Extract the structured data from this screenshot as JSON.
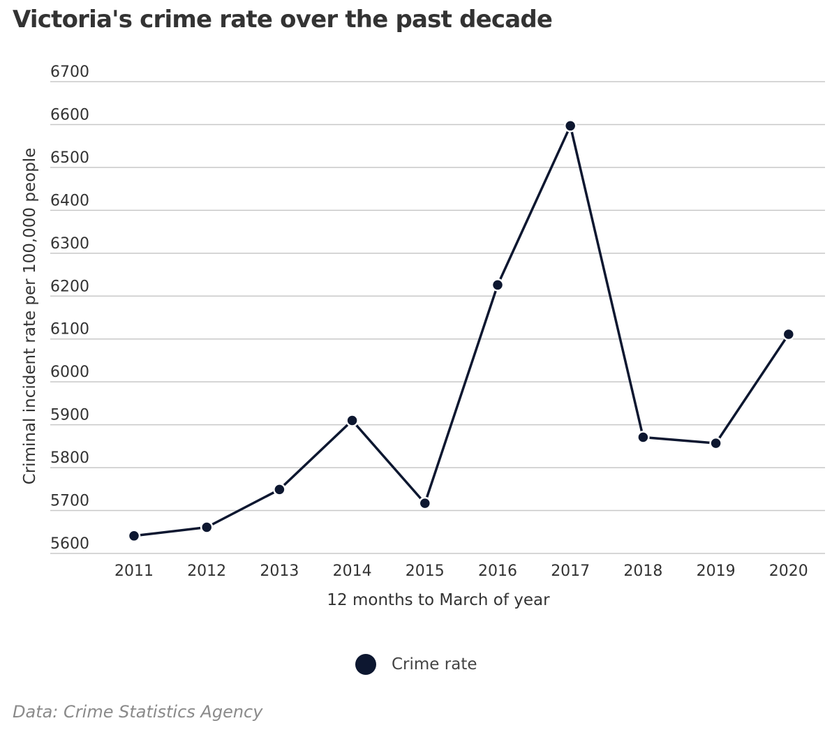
{
  "chart_data": {
    "type": "line",
    "title": "Victoria's crime rate over the past decade",
    "xlabel": "12 months to March of year",
    "ylabel": "Criminal incident rate per 100,000 people",
    "x": [
      "2011",
      "2012",
      "2013",
      "2014",
      "2015",
      "2016",
      "2017",
      "2018",
      "2019",
      "2020"
    ],
    "series": [
      {
        "name": "Crime rate",
        "color": "#0d1730",
        "values": [
          5641,
          5661,
          5749,
          5910,
          5717,
          6226,
          6597,
          5871,
          5857,
          6111
        ]
      }
    ],
    "ylim": [
      5600,
      6700
    ],
    "yticks": [
      5600,
      5700,
      5800,
      5900,
      6000,
      6100,
      6200,
      6300,
      6400,
      6500,
      6600,
      6700
    ],
    "grid": true,
    "legend": "bottom-center",
    "gridColor": "#c8c8c8"
  },
  "source": "Data: Crime Statistics Agency"
}
